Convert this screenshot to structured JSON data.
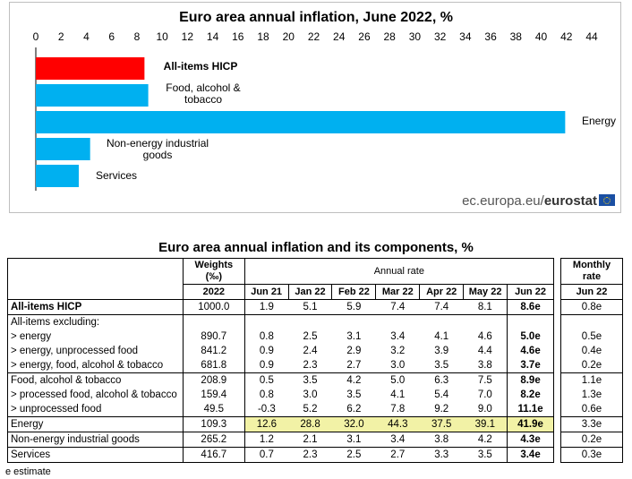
{
  "chart_data": {
    "type": "bar",
    "orientation": "horizontal",
    "title": "Euro area annual inflation, June 2022, %",
    "categories": [
      "All-items HICP",
      "Food, alcohol & tobacco",
      "Energy",
      "Non-energy industrial goods",
      "Services"
    ],
    "values": [
      8.6,
      8.9,
      41.9,
      4.3,
      3.4
    ],
    "colors": [
      "#ff0000",
      "#00b0f0",
      "#00b0f0",
      "#00b0f0",
      "#00b0f0"
    ],
    "xlim": [
      0,
      44
    ],
    "xticks": [
      "0",
      "2",
      "4",
      "6",
      "8",
      "10",
      "12",
      "14",
      "16",
      "18",
      "20",
      "22",
      "24",
      "26",
      "28",
      "30",
      "32",
      "34",
      "36",
      "38",
      "40",
      "42",
      "44"
    ],
    "axis_position": "top",
    "grid": false,
    "legend": "none"
  },
  "source": {
    "prefix": "ec.europa.eu/",
    "brand": "eurostat"
  },
  "table": {
    "title": "Euro area annual inflation and its components, %",
    "header": {
      "weights": "Weights (‰)",
      "annual_rate": "Annual rate",
      "weights_year": "2022",
      "months": [
        "Jun 21",
        "Jan 22",
        "Feb 22",
        "Mar 22",
        "Apr 22",
        "May 22",
        "Jun 22"
      ]
    },
    "rows": [
      {
        "label": "All-items HICP",
        "weight": "1000.0",
        "values": [
          "1.9",
          "5.1",
          "5.9",
          "7.4",
          "7.4",
          "8.1",
          "8.6e"
        ],
        "monthly": "0.8e",
        "bold_label": true
      },
      {
        "label": "All-items excluding:",
        "weight": "",
        "values": [
          "",
          "",
          "",
          "",
          "",
          "",
          ""
        ],
        "monthly": ""
      },
      {
        "label": "> energy",
        "weight": "890.7",
        "values": [
          "0.8",
          "2.5",
          "3.1",
          "3.4",
          "4.1",
          "4.6",
          "5.0e"
        ],
        "monthly": "0.5e"
      },
      {
        "label": "> energy, unprocessed food",
        "weight": "841.2",
        "values": [
          "0.9",
          "2.4",
          "2.9",
          "3.2",
          "3.9",
          "4.4",
          "4.6e"
        ],
        "monthly": "0.4e"
      },
      {
        "label": "> energy, food, alcohol & tobacco",
        "weight": "681.8",
        "values": [
          "0.9",
          "2.3",
          "2.7",
          "3.0",
          "3.5",
          "3.8",
          "3.7e"
        ],
        "monthly": "0.2e"
      },
      {
        "label": "Food, alcohol & tobacco",
        "weight": "208.9",
        "values": [
          "0.5",
          "3.5",
          "4.2",
          "5.0",
          "6.3",
          "7.5",
          "8.9e"
        ],
        "monthly": "1.1e"
      },
      {
        "label": "> processed food, alcohol & tobacco",
        "weight": "159.4",
        "values": [
          "0.8",
          "3.0",
          "3.5",
          "4.1",
          "5.4",
          "7.0",
          "8.2e"
        ],
        "monthly": "1.3e"
      },
      {
        "label": "> unprocessed food",
        "weight": "49.5",
        "values": [
          "-0.3",
          "5.2",
          "6.2",
          "7.8",
          "9.2",
          "9.0",
          "11.1e"
        ],
        "monthly": "0.6e"
      },
      {
        "label": "Energy",
        "weight": "109.3",
        "values": [
          "12.6",
          "28.8",
          "32.0",
          "44.3",
          "37.5",
          "39.1",
          "41.9e"
        ],
        "monthly": "3.3e",
        "highlight": true
      },
      {
        "label": "Non-energy industrial goods",
        "weight": "265.2",
        "values": [
          "1.2",
          "2.1",
          "3.1",
          "3.4",
          "3.8",
          "4.2",
          "4.3e"
        ],
        "monthly": "0.2e"
      },
      {
        "label": "Services",
        "weight": "416.7",
        "values": [
          "0.7",
          "2.3",
          "2.5",
          "2.7",
          "3.3",
          "3.5",
          "3.4e"
        ],
        "monthly": "0.3e"
      }
    ],
    "monthly_header": {
      "title": "Monthly rate",
      "month": "Jun 22"
    },
    "footnote": "e estimate"
  }
}
